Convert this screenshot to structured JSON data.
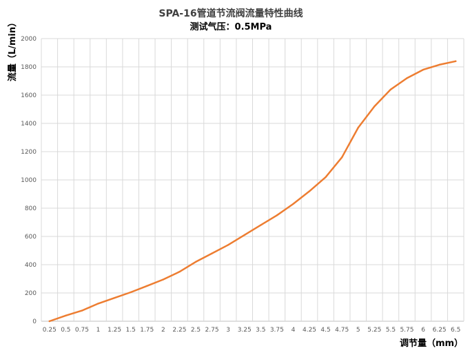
{
  "chart_data": {
    "type": "line",
    "title": "SPA-16管道节流阀流量特性曲线",
    "subtitle": "测试气压：0.5MPa",
    "xlabel": "调节量（mm）",
    "ylabel": "流量（L/min）",
    "categories": [
      "0.25",
      "0.5",
      "0.75",
      "1",
      "1.25",
      "1.5",
      "1.75",
      "2",
      "2.25",
      "2.5",
      "2.75",
      "3",
      "3.25",
      "3.5",
      "3.75",
      "4",
      "4.25",
      "4.5",
      "4.75",
      "5",
      "5.25",
      "5.5",
      "5.75",
      "6",
      "6.25",
      "6.5"
    ],
    "series": [
      {
        "color": "#ed7d31",
        "values": [
          0,
          40,
          75,
          125,
          165,
          205,
          250,
          295,
          350,
          420,
          480,
          540,
          610,
          680,
          750,
          830,
          920,
          1020,
          1160,
          1370,
          1520,
          1640,
          1720,
          1780,
          1815,
          1840
        ]
      }
    ],
    "ylim": [
      0,
      2000
    ],
    "yticks": [
      0,
      200,
      400,
      600,
      800,
      1000,
      1200,
      1400,
      1600,
      1800,
      2000
    ],
    "grid": true,
    "legend": "none"
  }
}
